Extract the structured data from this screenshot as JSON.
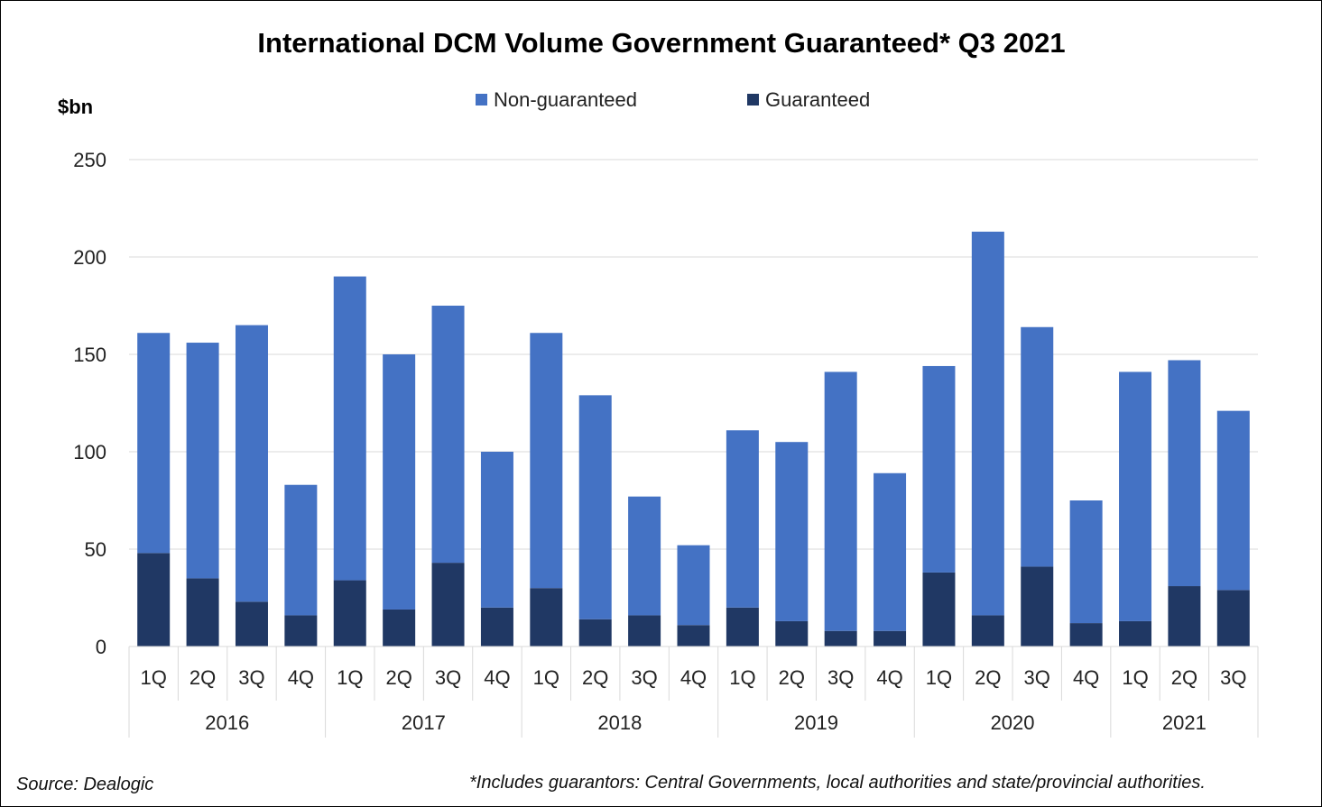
{
  "chart_data": {
    "type": "bar",
    "stacked": true,
    "title": "International DCM Volume Government Guaranteed* Q3 2021",
    "ylabel": "$bn",
    "ylim": [
      0,
      250
    ],
    "yticks": [
      0,
      50,
      100,
      150,
      200,
      250
    ],
    "grid": true,
    "legend_position": "top-center",
    "years": [
      {
        "label": "2016",
        "quarters": 4
      },
      {
        "label": "2017",
        "quarters": 4
      },
      {
        "label": "2018",
        "quarters": 4
      },
      {
        "label": "2019",
        "quarters": 4
      },
      {
        "label": "2020",
        "quarters": 4
      },
      {
        "label": "2021",
        "quarters": 3
      }
    ],
    "categories": [
      "1Q",
      "2Q",
      "3Q",
      "4Q",
      "1Q",
      "2Q",
      "3Q",
      "4Q",
      "1Q",
      "2Q",
      "3Q",
      "4Q",
      "1Q",
      "2Q",
      "3Q",
      "4Q",
      "1Q",
      "2Q",
      "3Q",
      "4Q",
      "1Q",
      "2Q",
      "3Q"
    ],
    "series": [
      {
        "name": "Non-guaranteed",
        "color": "#4472C4",
        "values": [
          113,
          121,
          142,
          67,
          156,
          131,
          132,
          80,
          131,
          115,
          61,
          41,
          91,
          92,
          133,
          81,
          106,
          197,
          123,
          63,
          128,
          116,
          92
        ]
      },
      {
        "name": "Guaranteed",
        "color": "#203864",
        "values": [
          48,
          35,
          23,
          16,
          34,
          19,
          43,
          20,
          30,
          14,
          16,
          11,
          20,
          13,
          8,
          8,
          38,
          16,
          41,
          12,
          13,
          31,
          29
        ]
      }
    ]
  },
  "legend": {
    "items": [
      {
        "label": "Non-guaranteed",
        "color": "#4472C4"
      },
      {
        "label": "Guaranteed",
        "color": "#203864"
      }
    ]
  },
  "footer": {
    "source": "Source: Dealogic",
    "note": "*Includes guarantors: Central Governments, local authorities and state/provincial authorities."
  }
}
